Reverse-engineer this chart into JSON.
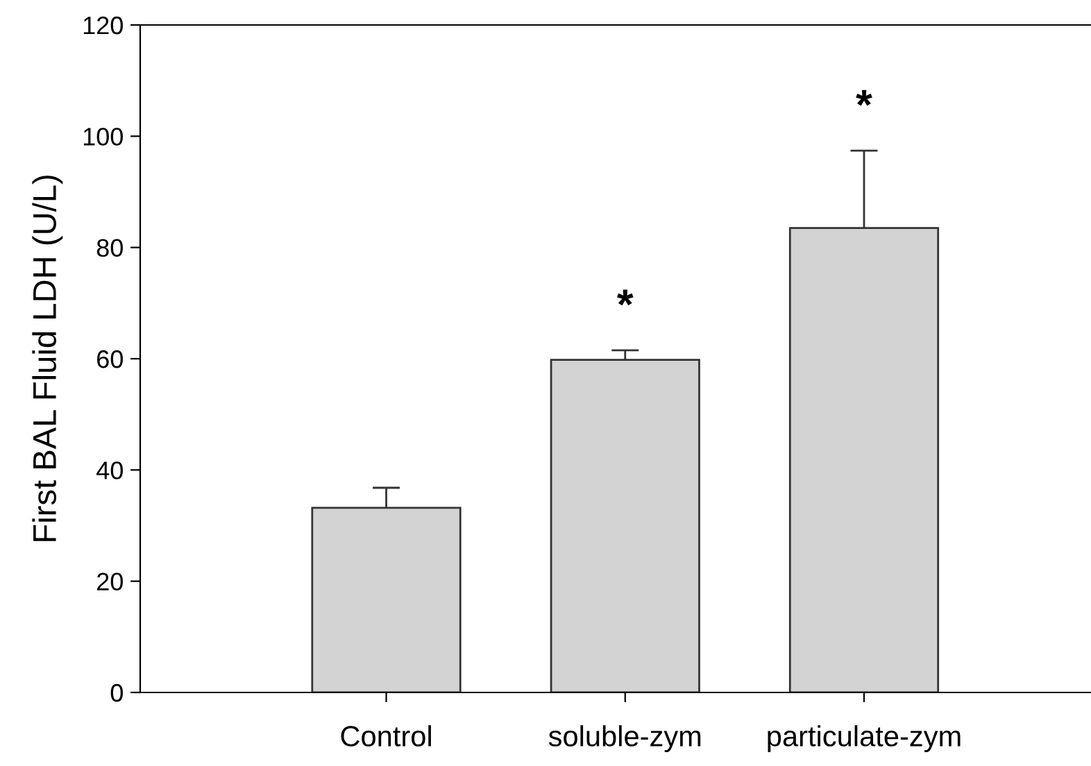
{
  "chart_data": {
    "type": "bar",
    "ylabel": "First BAL Fluid LDH (U/L)",
    "categories": [
      "Control",
      "soluble-zym",
      "particulate-zym"
    ],
    "values": [
      33.2,
      59.8,
      83.5
    ],
    "errors": [
      3.6,
      1.7,
      13.9
    ],
    "color": "#d3d3d3",
    "ylim": [
      0,
      120
    ],
    "yticks": [
      0,
      20,
      40,
      60,
      80,
      100,
      120
    ],
    "grid": false,
    "annotations": [
      "*",
      "*"
    ]
  }
}
